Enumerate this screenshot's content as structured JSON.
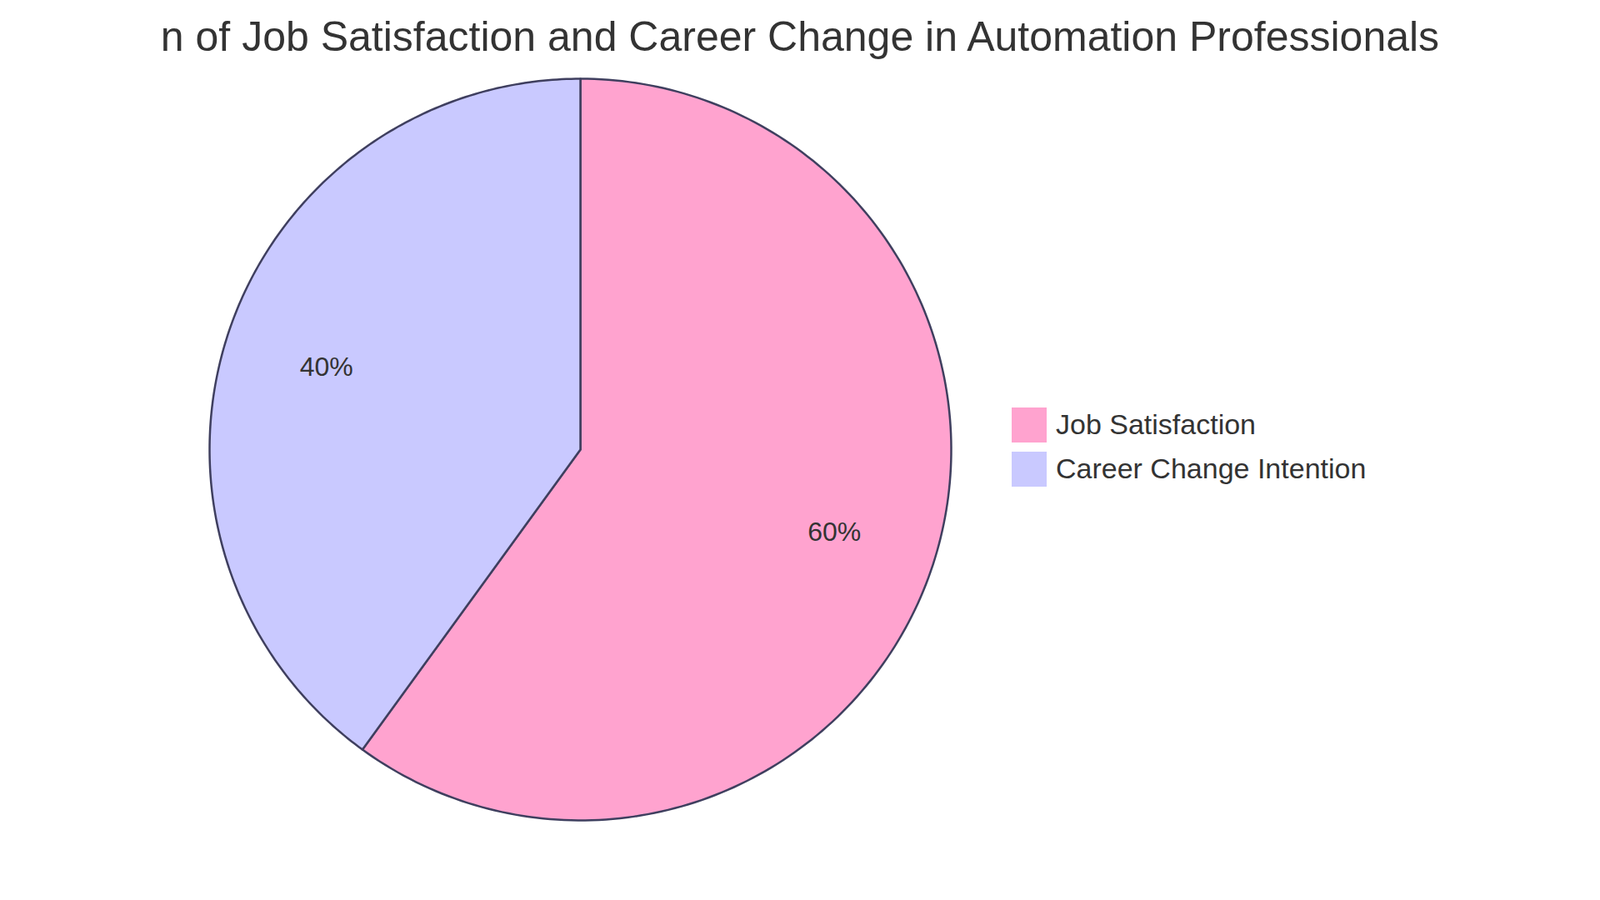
{
  "chart_data": {
    "type": "pie",
    "title": "n of Job Satisfaction and Career Change in Automation Professionals",
    "categories": [
      "Job Satisfaction",
      "Career Change Intention"
    ],
    "values": [
      60,
      40
    ],
    "value_labels": [
      "60%",
      "40%"
    ],
    "colors": [
      "#ffa3cf",
      "#c9c9ff"
    ],
    "data_labels": true,
    "legend": "right"
  }
}
